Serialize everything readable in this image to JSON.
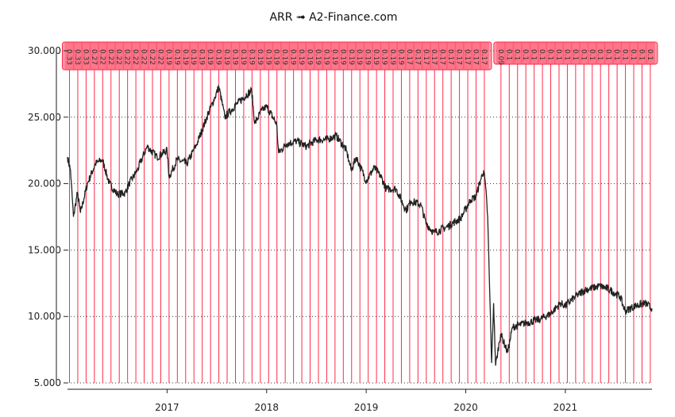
{
  "chart_data": {
    "type": "line",
    "title": "ARR ➟ A2-Finance.com",
    "xlabel": "",
    "ylabel": "",
    "xlim": [
      2016.0,
      2021.87
    ],
    "ylim": [
      5,
      30
    ],
    "yticks": [
      "30.000",
      "25.000",
      "20.000",
      "15.000",
      "10.000",
      "5.000"
    ],
    "ytick_values": [
      30,
      25,
      20,
      15,
      10,
      5
    ],
    "xticks": [
      "2017",
      "2018",
      "2019",
      "2020",
      "2021"
    ],
    "xtick_values": [
      2017,
      2018,
      2019,
      2020,
      2021
    ],
    "grid": "horizontal dotted",
    "colors": {
      "line": "#222222",
      "dividend": "#ff2a4a"
    },
    "series": [
      {
        "x": [
          2016.0,
          2016.03,
          2016.06,
          2016.1,
          2016.13,
          2016.2,
          2016.28,
          2016.35,
          2016.42,
          2016.5,
          2016.58,
          2016.62,
          2016.7,
          2016.8,
          2016.9,
          2017.0,
          2017.02,
          2017.1,
          2017.2,
          2017.3,
          2017.4,
          2017.48,
          2017.52,
          2017.58,
          2017.7,
          2017.8,
          2017.85,
          2017.88,
          2017.95,
          2018.0,
          2018.1,
          2018.12,
          2018.2,
          2018.3,
          2018.4,
          2018.5,
          2018.6,
          2018.7,
          2018.8,
          2018.85,
          2018.9,
          2019.0,
          2019.08,
          2019.15,
          2019.2,
          2019.3,
          2019.4,
          2019.45,
          2019.55,
          2019.6,
          2019.68,
          2019.8,
          2019.95,
          2020.05,
          2020.1,
          2020.15,
          2020.18,
          2020.2,
          2020.22,
          2020.24,
          2020.26,
          2020.28,
          2020.3,
          2020.35,
          2020.42,
          2020.47,
          2020.6,
          2020.75,
          2020.85,
          2020.95,
          2021.0,
          2021.1,
          2021.2,
          2021.35,
          2021.45,
          2021.55,
          2021.6,
          2021.7,
          2021.8,
          2021.87
        ],
        "y": [
          22,
          21,
          17.5,
          19.3,
          17.8,
          20,
          21.5,
          21.8,
          20,
          19.2,
          19.3,
          20,
          21,
          22.8,
          22,
          22.5,
          20.5,
          21.8,
          21.5,
          23,
          25,
          26.5,
          27.3,
          25,
          26,
          26.7,
          27,
          24.5,
          25.5,
          25.8,
          24.5,
          22.3,
          23,
          23.2,
          22.8,
          23.3,
          23.3,
          23.6,
          22.5,
          21,
          22,
          20.2,
          21.2,
          20.5,
          19.6,
          19.6,
          18,
          18.7,
          18.4,
          17,
          16.3,
          16.7,
          17.4,
          18.8,
          19,
          20.3,
          21,
          19.7,
          17.5,
          12,
          6.5,
          11,
          6.3,
          8.7,
          7.3,
          9.2,
          9.5,
          9.8,
          10.2,
          11,
          10.8,
          11.5,
          12,
          12.3,
          12,
          11.5,
          10.4,
          10.8,
          11,
          10.6
        ]
      }
    ],
    "dividends": {
      "start": "2016-01",
      "first_block": [
        "0.33",
        "0.33",
        "0.33",
        "0.27",
        "0.22",
        "0.22",
        "0.22",
        "0.22",
        "0.22",
        "0.22",
        "0.22",
        "0.22",
        "0.19",
        "0.19",
        "0.19",
        "0.19",
        "0.19",
        "0.19",
        "0.19",
        "0.19",
        "0.19",
        "0.19",
        "0.19",
        "0.19",
        "0.19",
        "0.19",
        "0.19",
        "0.19",
        "0.19",
        "0.19",
        "0.19",
        "0.19",
        "0.19",
        "0.19",
        "0.19",
        "0.19",
        "0.19",
        "0.19",
        "0.19",
        "0.19",
        "0.19",
        "0.17",
        "0.17",
        "0.17",
        "0.17",
        "0.17",
        "0.17",
        "0.17",
        "0.17",
        "0.17",
        "0.17"
      ],
      "second_start": "2020-05",
      "second_block": [
        "0.09",
        "0.1",
        "0.1",
        "0.1",
        "0.1",
        "0.1",
        "0.1",
        "0.1",
        "0.1",
        "0.1",
        "0.1",
        "0.1",
        "0.1",
        "0.1",
        "0.1",
        "0.1",
        "0.1",
        "0.1",
        "0.1"
      ]
    }
  }
}
